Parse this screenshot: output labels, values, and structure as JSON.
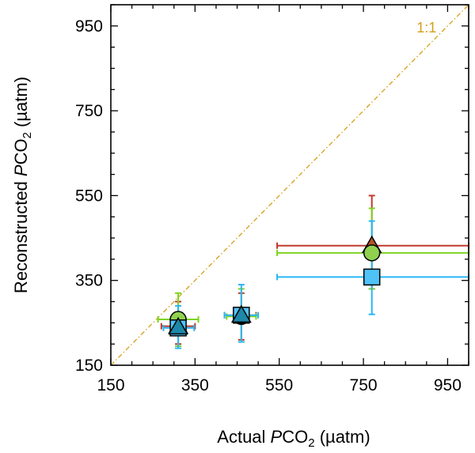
{
  "chart_data": {
    "type": "scatter",
    "xlabel": {
      "prefix": "Actual ",
      "italic": "P",
      "mid": "CO",
      "sub": "2",
      "suffix": " (µatm)"
    },
    "ylabel": {
      "prefix": "Reconstructed ",
      "italic": "P",
      "mid": "CO",
      "sub": "2",
      "suffix": " (µatm)"
    },
    "xlim": [
      150,
      1000
    ],
    "ylim": [
      150,
      1000
    ],
    "x_major_ticks": [
      150,
      350,
      550,
      750,
      950
    ],
    "y_major_ticks": [
      150,
      350,
      550,
      750,
      950
    ],
    "x_tick_labels": [
      "150",
      "350",
      "550",
      "750",
      "950"
    ],
    "y_tick_labels": [
      "150",
      "350",
      "550",
      "750",
      "950"
    ],
    "minor_tick_step": 50,
    "grid": false,
    "reference_line": {
      "label": "1:1",
      "color": "#D4A017",
      "style": "dash-dot",
      "from": [
        150,
        150
      ],
      "to": [
        1000,
        1000
      ]
    },
    "series": [
      {
        "marker": "triangle",
        "color": "#B5532A",
        "error_color": "#C0392B",
        "points": [
          {
            "x": 310,
            "y": 242,
            "xerr": [
              270,
              350
            ],
            "yerr": [
              200,
              300
            ]
          },
          {
            "x": 460,
            "y": 268,
            "xerr": [
              420,
              495
            ],
            "yerr": [
              210,
              320
            ]
          },
          {
            "x": 770,
            "y": 432,
            "xerr": [
              545,
              1000
            ],
            "yerr": [
              330,
              550
            ]
          }
        ]
      },
      {
        "marker": "circle",
        "color": "#8FD14F",
        "error_color": "#7ED321",
        "points": [
          {
            "x": 310,
            "y": 258,
            "xerr": [
              262,
              358
            ],
            "yerr": [
              195,
              320
            ]
          },
          {
            "x": 460,
            "y": 265,
            "xerr": [
              425,
              495
            ],
            "yerr": [
              205,
              330
            ]
          },
          {
            "x": 770,
            "y": 415,
            "xerr": [
              545,
              1000
            ],
            "yerr": [
              330,
              520
            ]
          }
        ]
      },
      {
        "marker": "square",
        "color": "#4FC3F7",
        "error_color": "#29B6F6",
        "points": [
          {
            "x": 310,
            "y": 238,
            "xerr": [
              275,
              348
            ],
            "yerr": [
              190,
              290
            ]
          },
          {
            "x": 460,
            "y": 268,
            "xerr": [
              420,
              500
            ],
            "yerr": [
              205,
              340
            ]
          },
          {
            "x": 770,
            "y": 358,
            "xerr": [
              545,
              1000
            ],
            "yerr": [
              270,
              490
            ]
          }
        ]
      },
      {
        "marker": "triangle",
        "color": "#1E88A8",
        "error_color": "#1E88A8",
        "points": [
          {
            "x": 310,
            "y": 240
          },
          {
            "x": 460,
            "y": 268
          }
        ]
      }
    ]
  }
}
